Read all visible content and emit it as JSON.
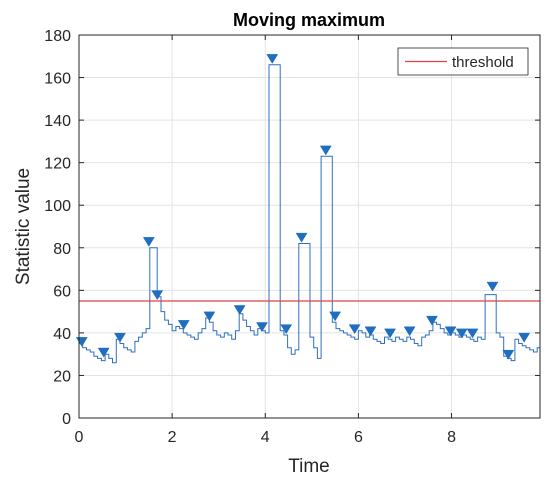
{
  "chart_data": {
    "type": "line",
    "title": "Moving maximum",
    "xlabel": "Time",
    "ylabel": "Statistic value",
    "xlim": [
      0,
      9.9
    ],
    "ylim": [
      0,
      180
    ],
    "xticks": [
      0,
      2,
      4,
      6,
      8
    ],
    "yticks": [
      0,
      20,
      40,
      60,
      80,
      100,
      120,
      140,
      160,
      180
    ],
    "grid": true,
    "legend_position": "top-right",
    "threshold": {
      "name": "threshold",
      "value": 55,
      "color": "#e04040"
    },
    "series": [
      {
        "color": "#2f6fbf",
        "x": [
          0,
          0.08,
          0.16,
          0.24,
          0.32,
          0.4,
          0.48,
          0.56,
          0.64,
          0.72,
          0.8,
          0.88,
          0.96,
          1.04,
          1.12,
          1.2,
          1.28,
          1.36,
          1.44,
          1.52,
          1.6,
          1.68,
          1.76,
          1.84,
          1.92,
          2.0,
          2.08,
          2.16,
          2.24,
          2.32,
          2.4,
          2.48,
          2.56,
          2.64,
          2.72,
          2.8,
          2.88,
          2.96,
          3.04,
          3.12,
          3.2,
          3.28,
          3.36,
          3.44,
          3.52,
          3.6,
          3.68,
          3.76,
          3.84,
          3.92,
          4.0,
          4.08,
          4.16,
          4.24,
          4.32,
          4.4,
          4.48,
          4.56,
          4.64,
          4.72,
          4.8,
          4.88,
          4.96,
          5.04,
          5.12,
          5.2,
          5.28,
          5.36,
          5.44,
          5.52,
          5.6,
          5.68,
          5.76,
          5.84,
          5.92,
          6.0,
          6.08,
          6.16,
          6.24,
          6.32,
          6.4,
          6.48,
          6.56,
          6.64,
          6.72,
          6.8,
          6.88,
          6.96,
          7.04,
          7.12,
          7.2,
          7.28,
          7.36,
          7.44,
          7.52,
          7.6,
          7.68,
          7.76,
          7.84,
          7.92,
          8.0,
          8.08,
          8.16,
          8.24,
          8.32,
          8.4,
          8.48,
          8.56,
          8.64,
          8.72,
          8.8,
          8.88,
          8.96,
          9.04,
          9.12,
          9.2,
          9.28,
          9.36,
          9.44,
          9.52,
          9.6,
          9.68,
          9.76,
          9.84,
          9.9
        ],
        "y": [
          35,
          33,
          32,
          31,
          29,
          28,
          27,
          30,
          28,
          26,
          37,
          35,
          33,
          32,
          31,
          36,
          38,
          40,
          42,
          80,
          80,
          57,
          50,
          46,
          44,
          41,
          43,
          42,
          40,
          39,
          38,
          37,
          40,
          42,
          47,
          45,
          41,
          39,
          38,
          40,
          39,
          37,
          41,
          49,
          46,
          43,
          41,
          39,
          42,
          41,
          40,
          166,
          166,
          166,
          41,
          39,
          33,
          30,
          32,
          82,
          82,
          82,
          38,
          33,
          28,
          123,
          123,
          123,
          45,
          42,
          41,
          40,
          39,
          38,
          37,
          41,
          40,
          38,
          39,
          37,
          36,
          35,
          38,
          37,
          36,
          38,
          37,
          36,
          38,
          37,
          35,
          34,
          38,
          39,
          41,
          45,
          44,
          42,
          40,
          39,
          40,
          39,
          38,
          39,
          38,
          37,
          36,
          38,
          37,
          58,
          58,
          58,
          40,
          38,
          29,
          28,
          27,
          37,
          35,
          34,
          33,
          32,
          31,
          33,
          34
        ]
      }
    ],
    "markers": {
      "color": "#1f6ec0",
      "x": [
        0.06,
        0.53,
        0.88,
        1.5,
        1.68,
        2.25,
        2.8,
        3.45,
        3.93,
        4.15,
        4.45,
        4.78,
        5.3,
        5.5,
        5.92,
        6.26,
        6.68,
        7.1,
        7.58,
        7.98,
        8.22,
        8.45,
        8.88,
        9.22,
        9.56
      ],
      "y": [
        36,
        31,
        38,
        83,
        58,
        44,
        48,
        51,
        43,
        169,
        42,
        85,
        126,
        48,
        42,
        41,
        40,
        41,
        46,
        41,
        40,
        40,
        62,
        30,
        38
      ]
    }
  }
}
